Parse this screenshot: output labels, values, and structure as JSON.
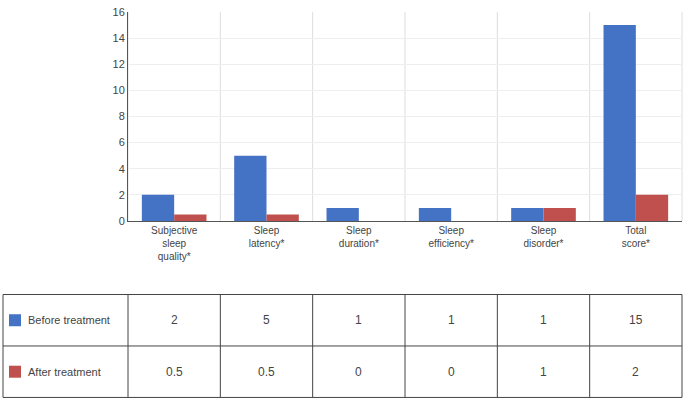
{
  "chart_data": {
    "type": "bar",
    "categories": [
      "Subjective\nsleep\nquality*",
      "Sleep\nlatency*",
      "Sleep\nduration*",
      "Sleep\nefficiency*",
      "Sleep\ndisorder*",
      "Total\nscore*"
    ],
    "series": [
      {
        "name": "Before treatment",
        "color": "#4472C4",
        "values": [
          2,
          5,
          1,
          1,
          1,
          15
        ]
      },
      {
        "name": "After treatment",
        "color": "#C0504D",
        "values": [
          0.5,
          0.5,
          0,
          0,
          1,
          2
        ]
      }
    ],
    "ylim": [
      0,
      16
    ],
    "yticks": [
      0,
      2,
      4,
      6,
      8,
      10,
      12,
      14,
      16
    ],
    "grid": true
  }
}
